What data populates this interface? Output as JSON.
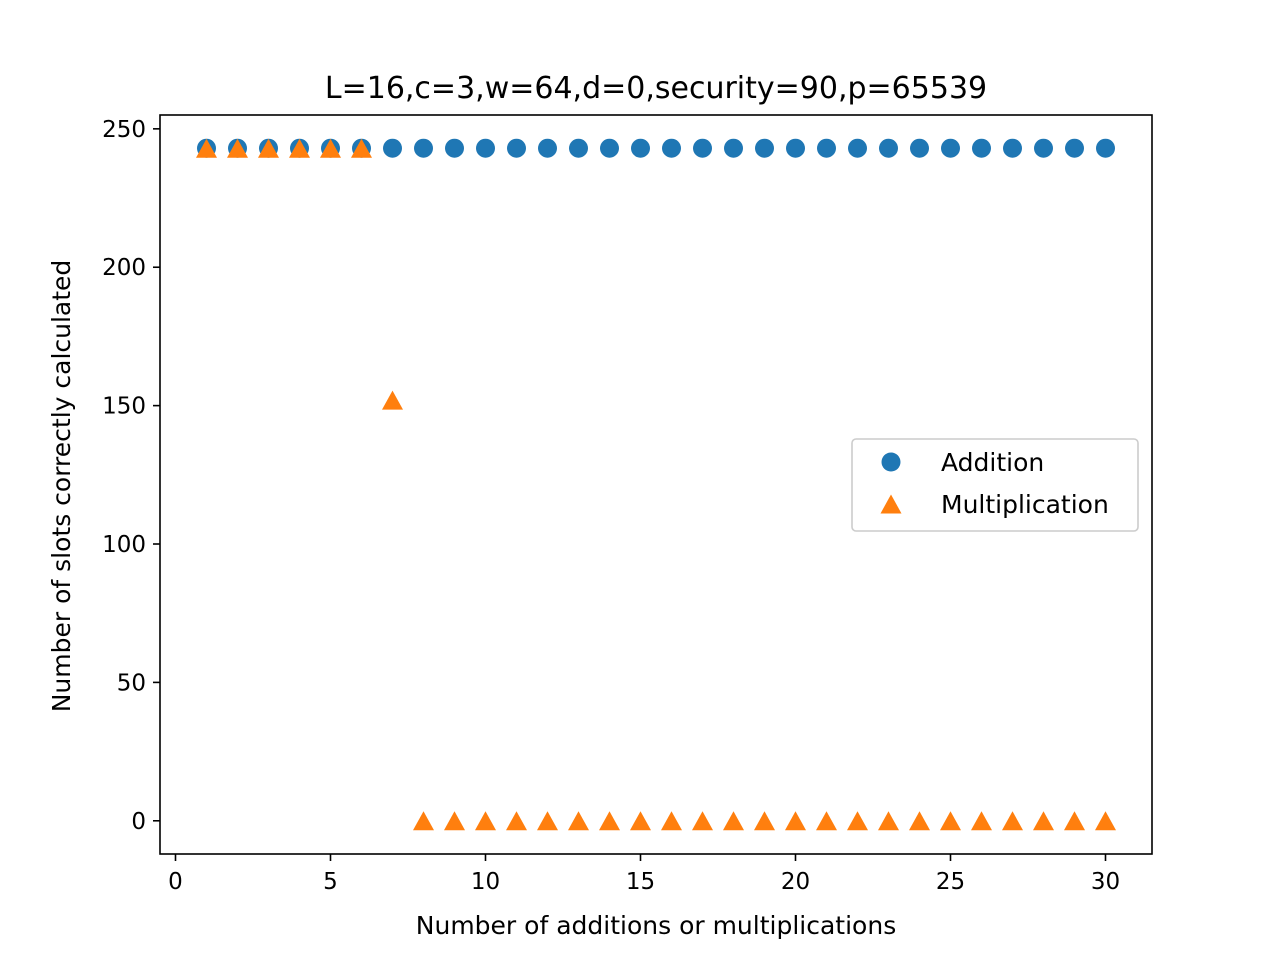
{
  "chart_data": {
    "type": "scatter",
    "title": "L=16,c=3,w=64,d=0,security=90,p=65539",
    "xlabel": "Number of additions or multiplications",
    "ylabel": "Number of slots correctly calculated",
    "xlim": [
      -0.5,
      31.5
    ],
    "ylim": [
      -12,
      255
    ],
    "xticks": [
      0,
      5,
      10,
      15,
      20,
      25,
      30
    ],
    "yticks": [
      0,
      50,
      100,
      150,
      200,
      250
    ],
    "xtick_labels": [
      "0",
      "5",
      "10",
      "15",
      "20",
      "25",
      "30"
    ],
    "ytick_labels": [
      "0",
      "50",
      "100",
      "150",
      "200",
      "250"
    ],
    "grid": false,
    "legend_position": "center-right",
    "series": [
      {
        "name": "Addition",
        "marker": "circle",
        "color": "#1f77b4",
        "x": [
          1,
          2,
          3,
          4,
          5,
          6,
          7,
          8,
          9,
          10,
          11,
          12,
          13,
          14,
          15,
          16,
          17,
          18,
          19,
          20,
          21,
          22,
          23,
          24,
          25,
          26,
          27,
          28,
          29,
          30
        ],
        "y": [
          243,
          243,
          243,
          243,
          243,
          243,
          243,
          243,
          243,
          243,
          243,
          243,
          243,
          243,
          243,
          243,
          243,
          243,
          243,
          243,
          243,
          243,
          243,
          243,
          243,
          243,
          243,
          243,
          243,
          243
        ]
      },
      {
        "name": "Multiplication",
        "marker": "triangle",
        "color": "#ff7f0e",
        "x": [
          1,
          2,
          3,
          4,
          5,
          6,
          7,
          8,
          9,
          10,
          11,
          12,
          13,
          14,
          15,
          16,
          17,
          18,
          19,
          20,
          21,
          22,
          23,
          24,
          25,
          26,
          27,
          28,
          29,
          30
        ],
        "y": [
          243,
          243,
          243,
          243,
          243,
          243,
          152,
          0,
          0,
          0,
          0,
          0,
          0,
          0,
          0,
          0,
          0,
          0,
          0,
          0,
          0,
          0,
          0,
          0,
          0,
          0,
          0,
          0,
          0,
          0
        ]
      }
    ]
  }
}
